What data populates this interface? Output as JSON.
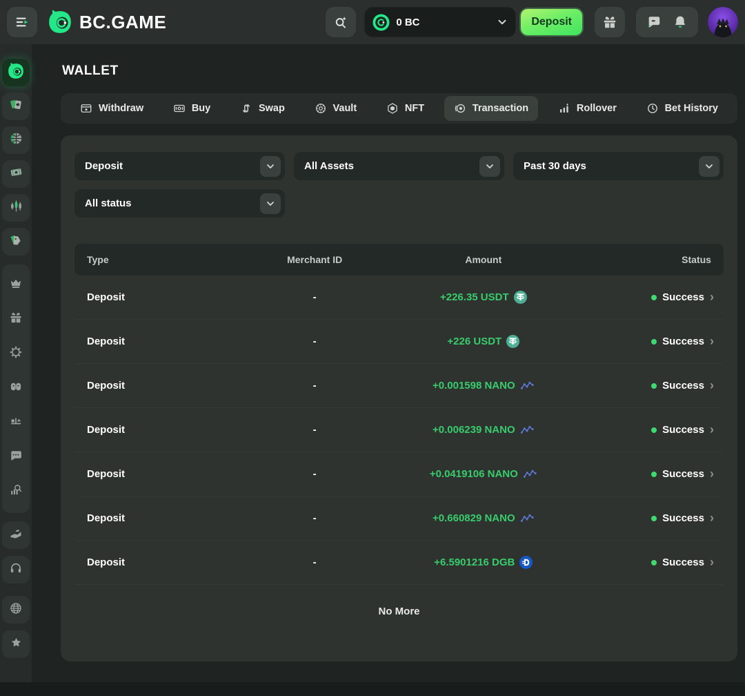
{
  "header": {
    "logo_text": "BC.GAME",
    "balance_value": "0 BC",
    "deposit_label": "Deposit"
  },
  "sidebar": {
    "group_top": [
      {
        "icon": "bc-logo-icon",
        "name": "sidebar-item-home",
        "active": true
      },
      {
        "icon": "casino-icon",
        "name": "sidebar-item-casino"
      },
      {
        "icon": "sports-icon",
        "name": "sidebar-item-sports"
      },
      {
        "icon": "lottery-icon",
        "name": "sidebar-item-lottery"
      },
      {
        "icon": "trading-icon",
        "name": "sidebar-item-trading"
      },
      {
        "icon": "tags-icon",
        "name": "sidebar-item-promotions"
      }
    ],
    "group_mid": [
      {
        "icon": "vip-icon",
        "name": "sidebar-item-vip"
      },
      {
        "icon": "bonus-icon",
        "name": "sidebar-item-bonus"
      },
      {
        "icon": "spin-icon",
        "name": "sidebar-item-spin"
      },
      {
        "icon": "community-icon",
        "name": "sidebar-item-community"
      },
      {
        "icon": "fairness-icon",
        "name": "sidebar-item-fairness"
      },
      {
        "icon": "forum-icon",
        "name": "sidebar-item-forum"
      },
      {
        "icon": "analytics-icon",
        "name": "sidebar-item-analytics"
      }
    ],
    "group_tail": [
      {
        "icon": "referral-icon",
        "name": "sidebar-item-referral"
      },
      {
        "icon": "support-icon",
        "name": "sidebar-item-support"
      }
    ],
    "group_last": [
      {
        "icon": "language-icon",
        "name": "sidebar-item-language"
      },
      {
        "icon": "favorites-icon",
        "name": "sidebar-item-favorites"
      }
    ]
  },
  "wallet": {
    "title": "WALLET",
    "tabs": [
      {
        "label": "Withdraw",
        "icon": "withdraw-icon",
        "name": "tab-withdraw"
      },
      {
        "label": "Buy",
        "icon": "buy-icon",
        "name": "tab-buy"
      },
      {
        "label": "Swap",
        "icon": "swap-icon",
        "name": "tab-swap"
      },
      {
        "label": "Vault",
        "icon": "vault-icon",
        "name": "tab-vault"
      },
      {
        "label": "NFT",
        "icon": "nft-icon",
        "name": "tab-nft"
      },
      {
        "label": "Transaction",
        "icon": "transaction-icon",
        "name": "tab-transaction",
        "active": true
      },
      {
        "label": "Rollover",
        "icon": "rollover-icon",
        "name": "tab-rollover"
      },
      {
        "label": "Bet History",
        "icon": "bet-history-icon",
        "name": "tab-bet-history"
      }
    ],
    "filters_row1": [
      {
        "value": "Deposit",
        "name": "filter-transaction-type"
      },
      {
        "value": "All Assets",
        "name": "filter-assets"
      },
      {
        "value": "Past 30 days",
        "name": "filter-date-range"
      }
    ],
    "filters_row2": [
      {
        "value": "All status",
        "name": "filter-status"
      }
    ],
    "table": {
      "columns": [
        "Type",
        "Merchant ID",
        "Amount",
        "Status"
      ],
      "rows": [
        {
          "type": "Deposit",
          "merchant_id": "-",
          "amount": "+226.35 USDT",
          "coin": "USDT",
          "status": "Success"
        },
        {
          "type": "Deposit",
          "merchant_id": "-",
          "amount": "+226 USDT",
          "coin": "USDT",
          "status": "Success"
        },
        {
          "type": "Deposit",
          "merchant_id": "-",
          "amount": "+0.001598 NANO",
          "coin": "NANO",
          "status": "Success"
        },
        {
          "type": "Deposit",
          "merchant_id": "-",
          "amount": "+0.006239 NANO",
          "coin": "NANO",
          "status": "Success"
        },
        {
          "type": "Deposit",
          "merchant_id": "-",
          "amount": "+0.0419106 NANO",
          "coin": "NANO",
          "status": "Success"
        },
        {
          "type": "Deposit",
          "merchant_id": "-",
          "amount": "+0.660829 NANO",
          "coin": "NANO",
          "status": "Success"
        },
        {
          "type": "Deposit",
          "merchant_id": "-",
          "amount": "+6.5901216 DGB",
          "coin": "DGB",
          "status": "Success"
        }
      ],
      "empty_text": "No More"
    }
  },
  "colors": {
    "brand_green": "#24e887",
    "amount_green": "#38cc6c",
    "success_green": "#3fd96f",
    "usdt_teal": "#4faf95",
    "dgb_blue": "#1559c7",
    "nano_blue": "#5b79d6",
    "panel_bg": "#2e3330",
    "page_bg": "#1f2423"
  }
}
